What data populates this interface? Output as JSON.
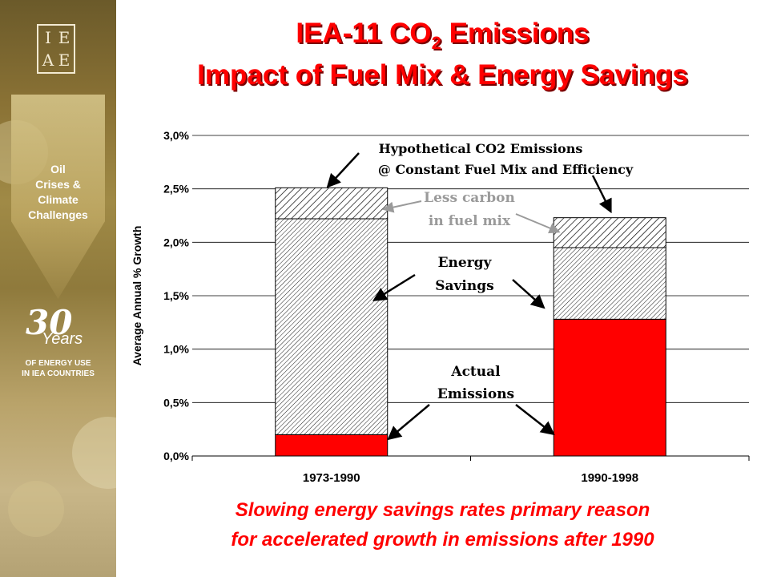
{
  "sidebar": {
    "logo_letters": [
      "I",
      "E",
      "A",
      "E"
    ],
    "theme_lines": [
      "Oil",
      "Crises &",
      "Climate",
      "Challenges"
    ],
    "thirty": "30",
    "years": "Years",
    "subtitle_line1": "OF ENERGY USE",
    "subtitle_line2": "IN IEA COUNTRIES"
  },
  "title": {
    "line1_main": "IEA-11 CO",
    "line1_sub": "2",
    "line1_tail": " Emissions",
    "line2": "Impact of Fuel Mix & Energy Savings"
  },
  "chart_data": {
    "type": "bar",
    "stacked": true,
    "categories": [
      "1973-1990",
      "1990-1998"
    ],
    "series": [
      {
        "name": "Actual Emissions",
        "values": [
          0.2,
          1.28
        ],
        "color": "#ff0000",
        "pattern": "solid"
      },
      {
        "name": "Energy Savings",
        "values": [
          2.02,
          0.67
        ],
        "color": "#000000",
        "pattern": "fine-hatch"
      },
      {
        "name": "Less carbon in fuel mix",
        "values": [
          0.29,
          0.28
        ],
        "color": "#000000",
        "pattern": "coarse-hatch"
      }
    ],
    "ylabel": "Average Annual % Growth",
    "ylim": [
      0,
      3.0
    ],
    "yticks": [
      "0,0%",
      "0,5%",
      "1,0%",
      "1,5%",
      "2,0%",
      "2,5%",
      "3,0%"
    ],
    "grid": true,
    "annotations": {
      "hypothetical_line1": "Hypothetical CO2 Emissions",
      "hypothetical_line2": "@ Constant Fuel Mix and Efficiency",
      "less_carbon_line1": "Less carbon",
      "less_carbon_line2": "in fuel mix",
      "energy_line1": "Energy",
      "energy_line2": "Savings",
      "actual_line1": "Actual",
      "actual_line2": "Emissions"
    }
  },
  "footer": {
    "line1": "Slowing energy savings rates primary reason",
    "line2": "for accelerated growth in emissions after 1990"
  }
}
